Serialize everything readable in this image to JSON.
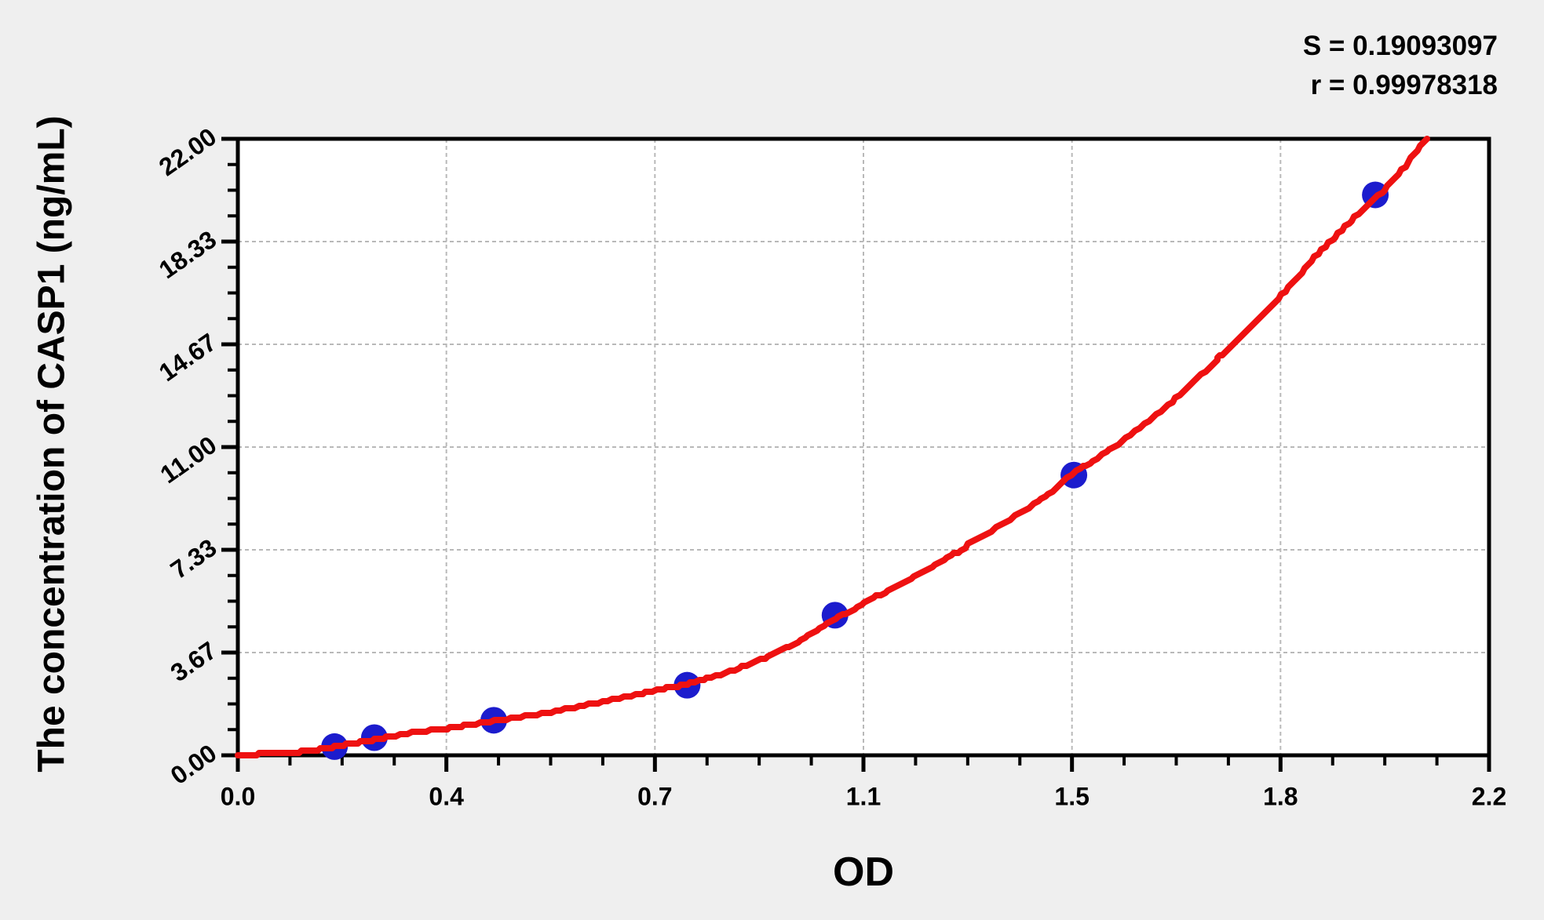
{
  "page": {
    "background": "#efefef"
  },
  "chart_data": {
    "type": "scatter",
    "title": "",
    "xlabel": "OD",
    "ylabel": "The concentration of CASP1 (ng/mL)",
    "xlim": [
      0,
      2.2
    ],
    "ylim": [
      0,
      22
    ],
    "x_tick_labels": [
      "0.0",
      "0.4",
      "0.7",
      "1.1",
      "1.5",
      "1.8",
      "2.2"
    ],
    "y_tick_labels": [
      "0.00",
      "3.67",
      "7.33",
      "11.00",
      "14.67",
      "18.33",
      "22.00"
    ],
    "minor_ticks_between_majors": 3,
    "grid": {
      "show": true,
      "style": "dashed",
      "color": "#b9b9b9"
    },
    "plot_background": "#ffffff",
    "axis_color": "#000000",
    "annotations": {
      "s": "S = 0.19093097",
      "r": "r = 0.99978318"
    },
    "series": [
      {
        "name": "standard-points",
        "type": "scatter",
        "color": "#1c1ccd",
        "points": [
          [
            0.17,
            0.31
          ],
          [
            0.24,
            0.63
          ],
          [
            0.45,
            1.25
          ],
          [
            0.79,
            2.5
          ],
          [
            1.05,
            5.0
          ],
          [
            1.47,
            10.0
          ],
          [
            2.0,
            20.0
          ]
        ]
      },
      {
        "name": "fitted-curve",
        "type": "line",
        "color": "#ee1111",
        "points": [
          [
            0,
            0.03
          ],
          [
            0.06,
            0.06
          ],
          [
            0.12,
            0.15
          ],
          [
            0.17,
            0.3
          ],
          [
            0.24,
            0.56
          ],
          [
            0.3,
            0.78
          ],
          [
            0.38,
            1.0
          ],
          [
            0.45,
            1.22
          ],
          [
            0.55,
            1.55
          ],
          [
            0.65,
            1.95
          ],
          [
            0.73,
            2.3
          ],
          [
            0.79,
            2.55
          ],
          [
            0.88,
            3.1
          ],
          [
            0.97,
            3.9
          ],
          [
            1.05,
            4.85
          ],
          [
            1.13,
            5.75
          ],
          [
            1.22,
            6.7
          ],
          [
            1.3,
            7.7
          ],
          [
            1.4,
            8.95
          ],
          [
            1.47,
            10.05
          ],
          [
            1.54,
            11.0
          ],
          [
            1.63,
            12.4
          ],
          [
            1.7,
            13.7
          ],
          [
            1.75,
            14.67
          ],
          [
            1.83,
            16.3
          ],
          [
            1.9,
            17.9
          ],
          [
            1.97,
            19.3
          ],
          [
            2.03,
            20.5
          ],
          [
            2.09,
            22.0
          ]
        ]
      }
    ]
  }
}
